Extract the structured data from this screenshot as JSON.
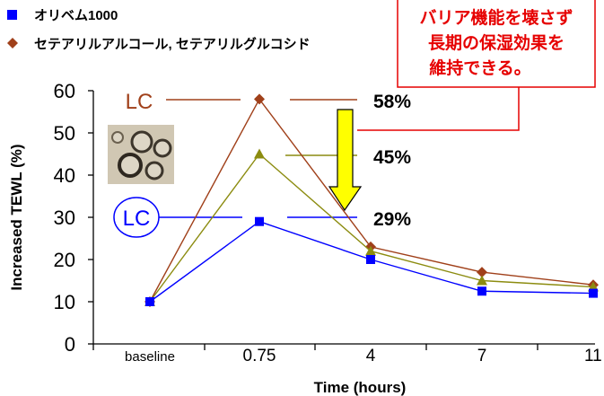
{
  "chart_data": {
    "type": "line",
    "categories": [
      "baseline",
      "0.75",
      "4",
      "7",
      "11"
    ],
    "xlabel": "Time (hours)",
    "ylabel": "Increased TEWL (%)",
    "ylim": [
      0,
      60
    ],
    "yticks": [
      "0",
      "10",
      "20",
      "30",
      "40",
      "50",
      "60"
    ],
    "grid": false,
    "legend_position": "top-left",
    "series": [
      {
        "name": "オリベム1000",
        "color": "#0000ff",
        "marker": "square",
        "values": [
          10,
          29,
          20,
          12.5,
          12
        ]
      },
      {
        "name": "セテアリルアルコール, セテアリルグルコシド",
        "color": "#a0401a",
        "marker": "diamond",
        "values": [
          10,
          58,
          23,
          17,
          14
        ]
      },
      {
        "unlabeled": true,
        "color": "#8c8c10",
        "marker": "triangle",
        "values": [
          10,
          45,
          22,
          15,
          13.5
        ]
      }
    ],
    "annotations": {
      "lc_label": "LC",
      "pct_labels": [
        "58%",
        "45%",
        "29%"
      ],
      "callout_lines": [
        "バリア機能を壊さず",
        "長期の保湿効果を",
        "維持できる。"
      ]
    }
  }
}
